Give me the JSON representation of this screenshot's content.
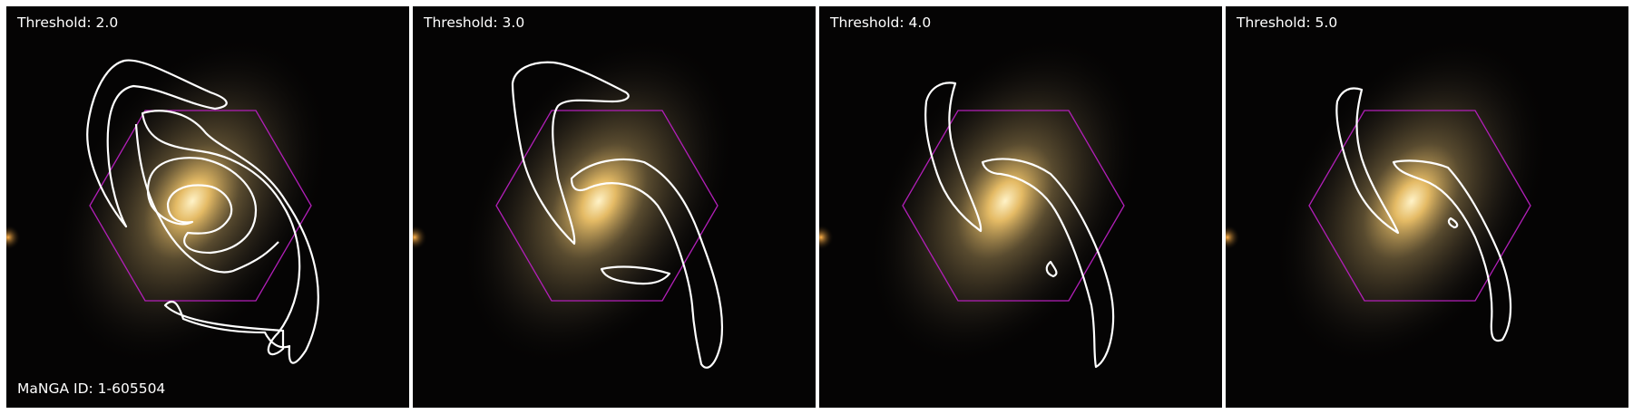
{
  "figure": {
    "panels": [
      {
        "threshold_label": "Threshold: 2.0"
      },
      {
        "threshold_label": "Threshold: 3.0"
      },
      {
        "threshold_label": "Threshold: 4.0"
      },
      {
        "threshold_label": "Threshold: 5.0"
      }
    ],
    "galaxy_id_label": "MaNGA ID: 1-605504"
  },
  "colors": {
    "background": "#050404",
    "contour": "#ffffff",
    "ifu_hexagon": "#b21fb8",
    "galaxy_core": "#f7d27a",
    "galaxy_halo": "#8a7a50"
  },
  "icons": {
    "hexagon": "ifu-footprint-hexagon",
    "contour": "spiral-arm-contour"
  }
}
